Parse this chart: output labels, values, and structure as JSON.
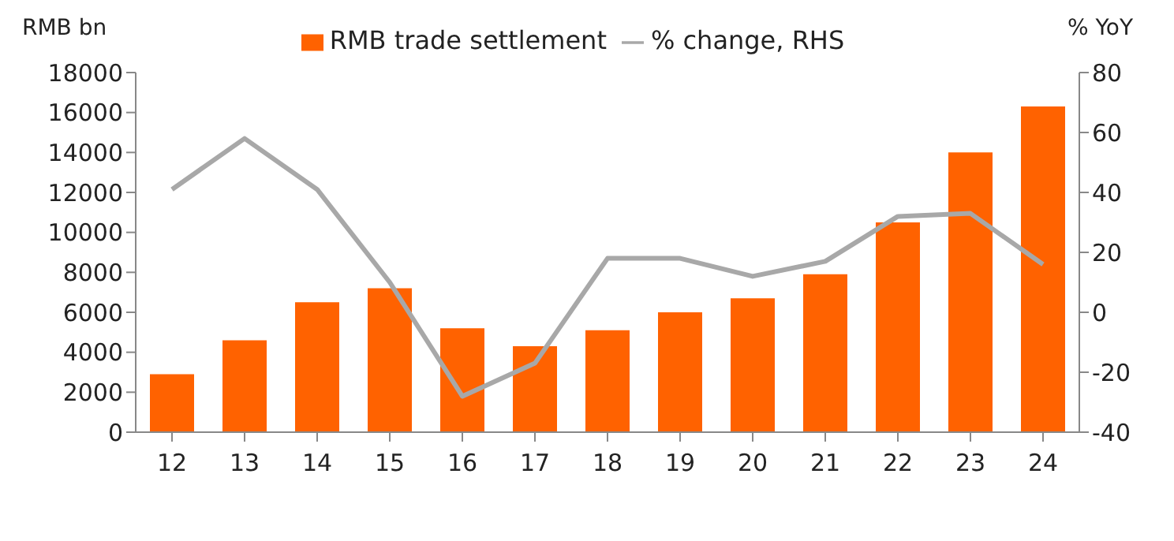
{
  "chart_data": {
    "type": "bar",
    "ylabel": "RMB bn",
    "y2label": "% YoY",
    "categories": [
      "12",
      "13",
      "14",
      "15",
      "16",
      "17",
      "18",
      "19",
      "20",
      "21",
      "22",
      "23",
      "24"
    ],
    "series": [
      {
        "name": "RMB trade settlement",
        "color": "#ff6200",
        "values": [
          2900,
          4600,
          6500,
          7200,
          5200,
          4300,
          5100,
          6000,
          6700,
          7900,
          10500,
          14000,
          16300
        ]
      },
      {
        "name": "% change, RHS",
        "type": "line",
        "axis": "y2",
        "color": "#a8a8a8",
        "values": [
          41,
          58,
          41,
          10,
          -28,
          -17,
          18,
          18,
          12,
          17,
          32,
          33,
          16
        ]
      }
    ],
    "ylim": [
      0,
      18000
    ],
    "yticks": [
      0,
      2000,
      4000,
      6000,
      8000,
      10000,
      12000,
      14000,
      16000,
      18000
    ],
    "y2lim": [
      -40,
      80
    ],
    "y2ticks": [
      -40,
      -20,
      0,
      20,
      40,
      60,
      80
    ],
    "grid": false,
    "legend": "top",
    "marker": "none",
    "line_style": "solid"
  }
}
